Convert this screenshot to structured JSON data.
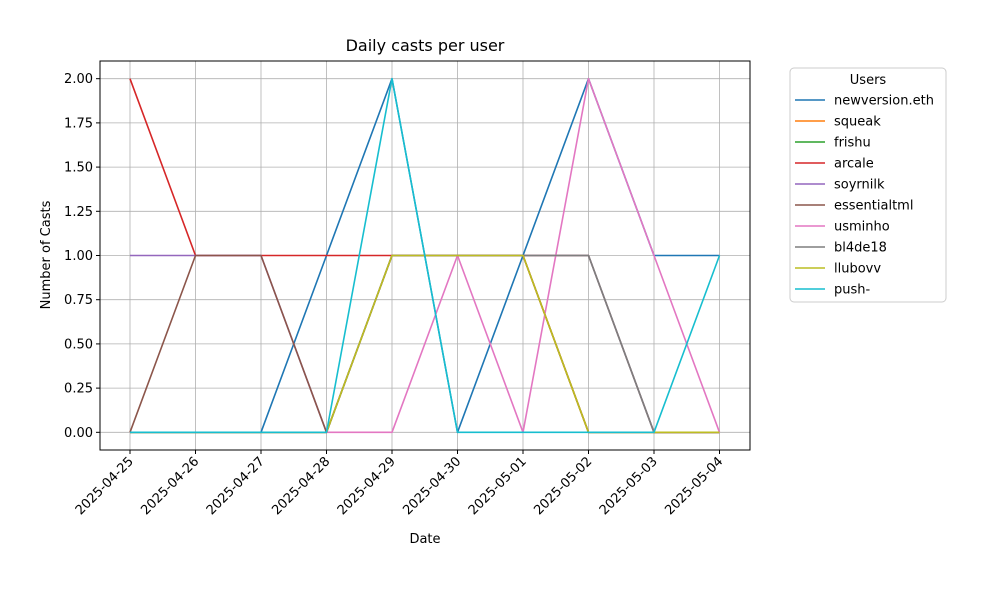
{
  "chart_data": {
    "type": "line",
    "title": "Daily casts per user",
    "xlabel": "Date",
    "ylabel": "Number of Casts",
    "ylim": [
      -0.1,
      2.1
    ],
    "yticks": [
      "0.00",
      "0.25",
      "0.50",
      "0.75",
      "1.00",
      "1.25",
      "1.50",
      "1.75",
      "2.00"
    ],
    "grid": true,
    "legend_title": "Users",
    "legend_position": "outside-right",
    "categories": [
      "2025-04-25",
      "2025-04-26",
      "2025-04-27",
      "2025-04-28",
      "2025-04-29",
      "2025-04-30",
      "2025-05-01",
      "2025-05-02",
      "2025-05-03",
      "2025-05-04"
    ],
    "series": [
      {
        "name": "newversion.eth",
        "color": "#1f77b4",
        "values": [
          0,
          0,
          0,
          1,
          2,
          0,
          1,
          2,
          1,
          1
        ]
      },
      {
        "name": "squeak",
        "color": "#ff7f0e",
        "values": [
          0,
          0,
          0,
          0,
          1,
          1,
          1,
          0,
          0,
          0
        ]
      },
      {
        "name": "frishu",
        "color": "#2ca02c",
        "values": [
          0,
          0,
          0,
          0,
          1,
          1,
          1,
          0,
          0,
          0
        ]
      },
      {
        "name": "arcale",
        "color": "#d62728",
        "values": [
          2,
          1,
          1,
          1,
          1,
          1,
          1,
          0,
          0,
          0
        ]
      },
      {
        "name": "soyrnilk",
        "color": "#9467bd",
        "values": [
          1,
          1,
          1,
          0,
          1,
          1,
          1,
          1,
          0,
          0
        ]
      },
      {
        "name": "essentialtml",
        "color": "#8c564b",
        "values": [
          0,
          1,
          1,
          0,
          1,
          1,
          1,
          1,
          0,
          0
        ]
      },
      {
        "name": "usminho",
        "color": "#e377c2",
        "values": [
          0,
          0,
          0,
          0,
          0,
          1,
          0,
          2,
          1,
          0
        ]
      },
      {
        "name": "bl4de18",
        "color": "#7f7f7f",
        "values": [
          0,
          0,
          0,
          0,
          1,
          1,
          1,
          1,
          0,
          0
        ]
      },
      {
        "name": "llubovv",
        "color": "#bcbd22",
        "values": [
          0,
          0,
          0,
          0,
          1,
          1,
          1,
          0,
          0,
          0
        ]
      },
      {
        "name": "push-",
        "color": "#17becf",
        "values": [
          0,
          0,
          0,
          0,
          2,
          0,
          0,
          0,
          0,
          1
        ]
      }
    ]
  }
}
